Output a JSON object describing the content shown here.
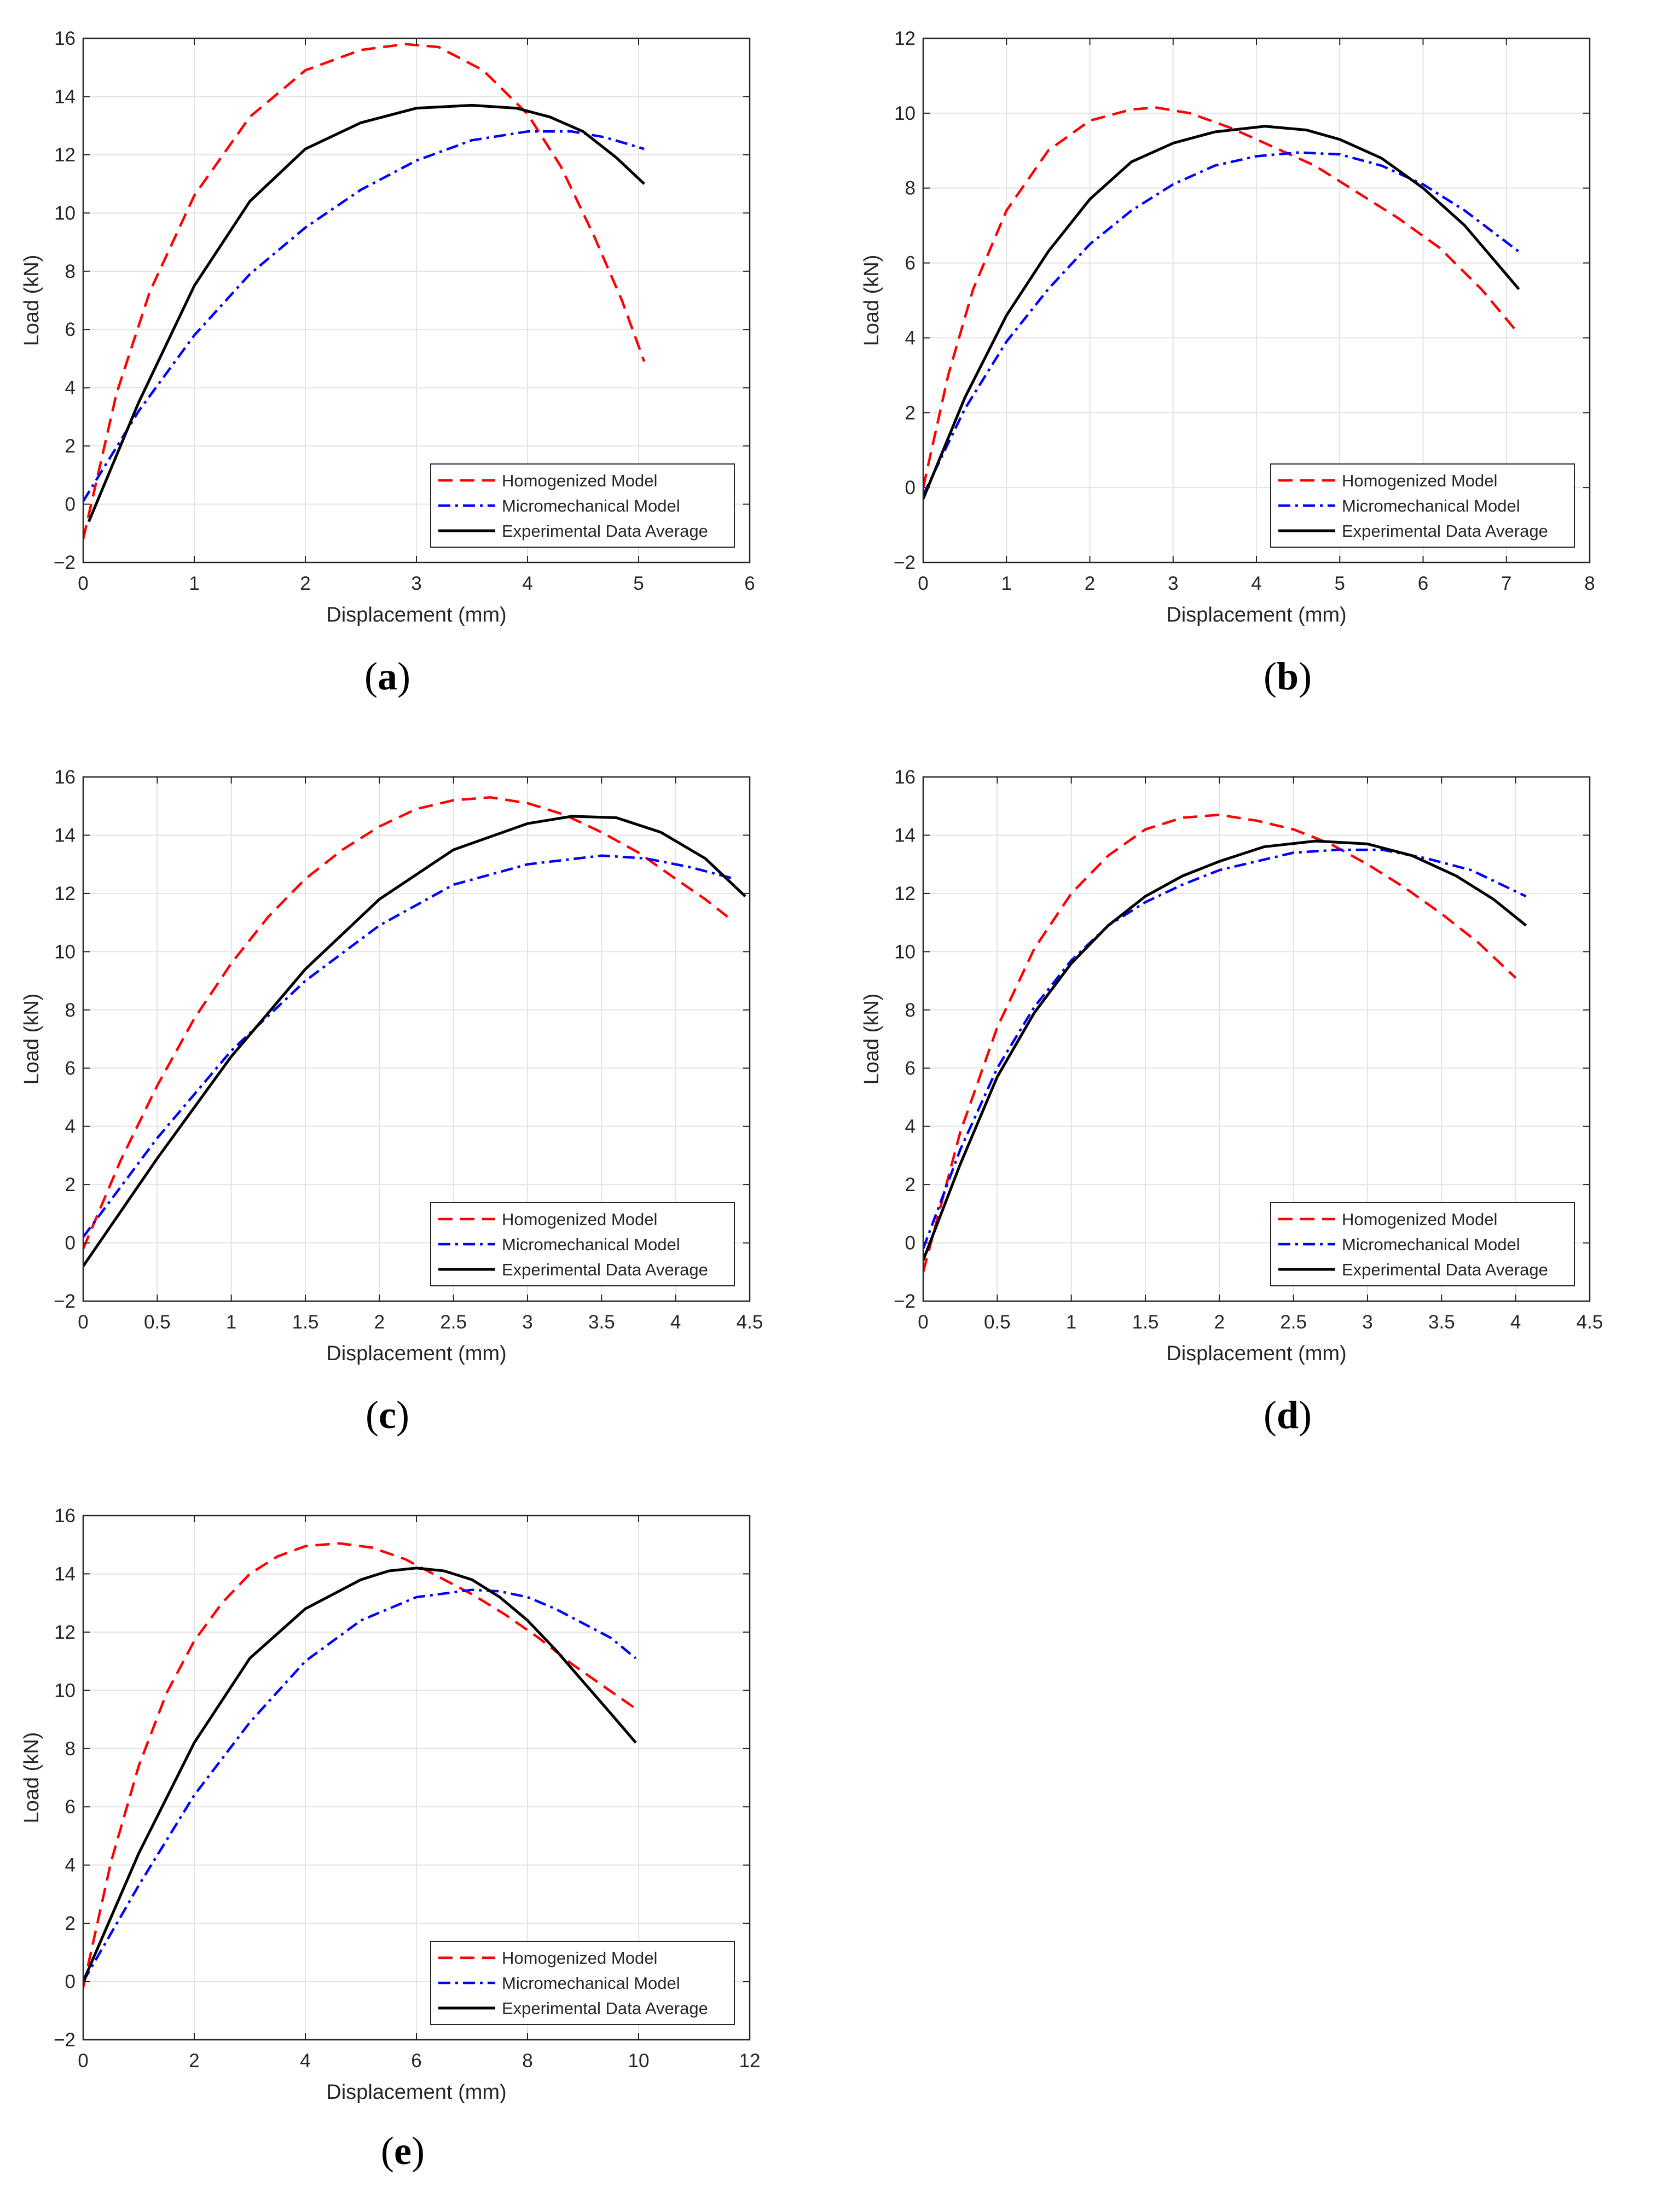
{
  "chart_data": [
    {
      "type": "line",
      "caption": "a",
      "xlabel": "Displacement (mm)",
      "ylabel": "Load (kN)",
      "xlim": [
        0,
        6
      ],
      "ylim": [
        -2,
        16
      ],
      "xticks": [
        0,
        1,
        2,
        3,
        4,
        5,
        6
      ],
      "yticks": [
        -2,
        0,
        2,
        4,
        6,
        8,
        10,
        12,
        14,
        16
      ],
      "xtick_labels": [
        "0",
        "1",
        "2",
        "3",
        "4",
        "5",
        "6"
      ],
      "ytick_labels": [
        "−2",
        "0",
        "2",
        "4",
        "6",
        "8",
        "10",
        "12",
        "14",
        "16"
      ],
      "grid": true,
      "legend_location": "bottom-right",
      "series": [
        {
          "name": "Homogenized Model",
          "style": "dashed",
          "color": "#ff0000",
          "x": [
            0,
            0.3,
            0.6,
            1.0,
            1.5,
            2.0,
            2.5,
            2.9,
            3.2,
            3.6,
            4.0,
            4.3,
            4.6,
            4.85,
            5.05
          ],
          "y": [
            -1.2,
            3.8,
            7.3,
            10.6,
            13.3,
            14.9,
            15.6,
            15.8,
            15.7,
            14.9,
            13.4,
            11.6,
            9.2,
            7.0,
            4.9
          ]
        },
        {
          "name": "Micromechanical Model",
          "style": "dashdot",
          "color": "#0000ff",
          "x": [
            0,
            0.5,
            1.0,
            1.5,
            2.0,
            2.5,
            3.0,
            3.5,
            4.0,
            4.4,
            4.7,
            5.05
          ],
          "y": [
            0.1,
            3.2,
            5.8,
            7.9,
            9.5,
            10.8,
            11.8,
            12.5,
            12.8,
            12.8,
            12.6,
            12.2
          ]
        },
        {
          "name": "Experimental Data Average",
          "style": "solid",
          "color": "#000000",
          "x": [
            0.05,
            0.5,
            1.0,
            1.5,
            2.0,
            2.5,
            3.0,
            3.5,
            3.9,
            4.2,
            4.5,
            4.8,
            5.05
          ],
          "y": [
            -0.6,
            3.5,
            7.5,
            10.4,
            12.2,
            13.1,
            13.6,
            13.7,
            13.6,
            13.3,
            12.8,
            11.9,
            11.0
          ]
        }
      ]
    },
    {
      "type": "line",
      "caption": "b",
      "xlabel": "Displacement (mm)",
      "ylabel": "Load (kN)",
      "xlim": [
        0,
        8
      ],
      "ylim": [
        -2,
        12
      ],
      "xticks": [
        0,
        1,
        2,
        3,
        4,
        5,
        6,
        7,
        8
      ],
      "yticks": [
        -2,
        0,
        2,
        4,
        6,
        8,
        10,
        12
      ],
      "xtick_labels": [
        "0",
        "1",
        "2",
        "3",
        "4",
        "5",
        "6",
        "7",
        "8"
      ],
      "ytick_labels": [
        "−2",
        "0",
        "2",
        "4",
        "6",
        "8",
        "10",
        "12"
      ],
      "grid": true,
      "legend_location": "bottom-right",
      "series": [
        {
          "name": "Homogenized Model",
          "style": "dashed",
          "color": "#ff0000",
          "x": [
            0,
            0.3,
            0.6,
            1.0,
            1.5,
            2.0,
            2.5,
            2.8,
            3.2,
            3.7,
            4.2,
            4.7,
            5.2,
            5.7,
            6.2,
            6.7,
            7.15
          ],
          "y": [
            0,
            3.0,
            5.3,
            7.4,
            9.0,
            9.8,
            10.1,
            10.15,
            10.0,
            9.6,
            9.1,
            8.6,
            7.9,
            7.2,
            6.4,
            5.3,
            4.1
          ]
        },
        {
          "name": "Micromechanical Model",
          "style": "dashdot",
          "color": "#0000ff",
          "x": [
            0,
            0.5,
            1.0,
            1.5,
            2.0,
            2.5,
            3.0,
            3.5,
            4.0,
            4.5,
            5.0,
            5.5,
            6.0,
            6.5,
            7.15
          ],
          "y": [
            -0.2,
            2.1,
            3.9,
            5.3,
            6.5,
            7.4,
            8.1,
            8.6,
            8.85,
            8.95,
            8.9,
            8.6,
            8.1,
            7.4,
            6.3
          ]
        },
        {
          "name": "Experimental Data Average",
          "style": "solid",
          "color": "#000000",
          "x": [
            0,
            0.5,
            1.0,
            1.5,
            2.0,
            2.5,
            3.0,
            3.5,
            4.1,
            4.6,
            5.0,
            5.5,
            6.0,
            6.5,
            7.15
          ],
          "y": [
            -0.3,
            2.4,
            4.6,
            6.3,
            7.7,
            8.7,
            9.2,
            9.5,
            9.65,
            9.55,
            9.3,
            8.8,
            8.0,
            7.0,
            5.3
          ]
        }
      ]
    },
    {
      "type": "line",
      "caption": "c",
      "xlabel": "Displacement (mm)",
      "ylabel": "Load (kN)",
      "xlim": [
        0,
        4.5
      ],
      "ylim": [
        -2,
        16
      ],
      "xticks": [
        0,
        0.5,
        1,
        1.5,
        2,
        2.5,
        3,
        3.5,
        4,
        4.5
      ],
      "yticks": [
        -2,
        0,
        2,
        4,
        6,
        8,
        10,
        12,
        14,
        16
      ],
      "xtick_labels": [
        "0",
        "0.5",
        "1",
        "1.5",
        "2",
        "2.5",
        "3",
        "3.5",
        "4",
        "4.5"
      ],
      "ytick_labels": [
        "−2",
        "0",
        "2",
        "4",
        "6",
        "8",
        "10",
        "12",
        "14",
        "16"
      ],
      "grid": true,
      "legend_location": "bottom-right",
      "series": [
        {
          "name": "Homogenized Model",
          "style": "dashed",
          "color": "#ff0000",
          "x": [
            0,
            0.25,
            0.5,
            0.75,
            1.0,
            1.25,
            1.5,
            1.75,
            2.0,
            2.25,
            2.5,
            2.75,
            3.0,
            3.25,
            3.5,
            3.75,
            4.0,
            4.2,
            4.35
          ],
          "y": [
            -0.2,
            2.8,
            5.4,
            7.7,
            9.6,
            11.2,
            12.5,
            13.5,
            14.3,
            14.9,
            15.2,
            15.3,
            15.1,
            14.7,
            14.1,
            13.4,
            12.5,
            11.8,
            11.2
          ]
        },
        {
          "name": "Micromechanical Model",
          "style": "dashdot",
          "color": "#0000ff",
          "x": [
            0,
            0.5,
            1.0,
            1.5,
            2.0,
            2.5,
            3.0,
            3.5,
            3.8,
            4.1,
            4.4
          ],
          "y": [
            0.2,
            3.6,
            6.6,
            9.0,
            10.9,
            12.3,
            13.0,
            13.3,
            13.2,
            12.9,
            12.5
          ]
        },
        {
          "name": "Experimental Data Average",
          "style": "solid",
          "color": "#000000",
          "x": [
            0,
            0.5,
            1.0,
            1.5,
            2.0,
            2.5,
            3.0,
            3.3,
            3.6,
            3.9,
            4.2,
            4.47
          ],
          "y": [
            -0.8,
            2.9,
            6.4,
            9.4,
            11.8,
            13.5,
            14.4,
            14.65,
            14.6,
            14.1,
            13.2,
            11.9
          ]
        }
      ]
    },
    {
      "type": "line",
      "caption": "d",
      "xlabel": "Displacement (mm)",
      "ylabel": "Load (kN)",
      "xlim": [
        0,
        4.5
      ],
      "ylim": [
        -2,
        16
      ],
      "xticks": [
        0,
        0.5,
        1,
        1.5,
        2,
        2.5,
        3,
        3.5,
        4,
        4.5
      ],
      "yticks": [
        -2,
        0,
        2,
        4,
        6,
        8,
        10,
        12,
        14,
        16
      ],
      "xtick_labels": [
        "0",
        "0.5",
        "1",
        "1.5",
        "2",
        "2.5",
        "3",
        "3.5",
        "4",
        "4.5"
      ],
      "ytick_labels": [
        "−2",
        "0",
        "2",
        "4",
        "6",
        "8",
        "10",
        "12",
        "14",
        "16"
      ],
      "grid": true,
      "legend_location": "bottom-right",
      "series": [
        {
          "name": "Homogenized Model",
          "style": "dashed",
          "color": "#ff0000",
          "x": [
            0,
            0.25,
            0.5,
            0.75,
            1.0,
            1.25,
            1.5,
            1.75,
            2.0,
            2.25,
            2.5,
            2.75,
            3.0,
            3.25,
            3.5,
            3.75,
            4.0
          ],
          "y": [
            -1.0,
            3.8,
            7.4,
            10.1,
            12.0,
            13.3,
            14.2,
            14.6,
            14.7,
            14.5,
            14.2,
            13.7,
            13.0,
            12.2,
            11.3,
            10.3,
            9.1
          ]
        },
        {
          "name": "Micromechanical Model",
          "style": "dashdot",
          "color": "#0000ff",
          "x": [
            0,
            0.25,
            0.5,
            0.75,
            1.0,
            1.25,
            1.5,
            1.75,
            2.0,
            2.5,
            2.8,
            3.1,
            3.4,
            3.7,
            4.07
          ],
          "y": [
            -0.2,
            3.2,
            6.0,
            8.1,
            9.7,
            10.9,
            11.7,
            12.3,
            12.8,
            13.4,
            13.5,
            13.5,
            13.2,
            12.8,
            11.9
          ]
        },
        {
          "name": "Experimental Data Average",
          "style": "solid",
          "color": "#000000",
          "x": [
            0,
            0.25,
            0.5,
            0.75,
            1.0,
            1.25,
            1.5,
            1.75,
            2.0,
            2.3,
            2.65,
            3.0,
            3.3,
            3.6,
            3.85,
            4.07
          ],
          "y": [
            -0.6,
            2.7,
            5.7,
            7.9,
            9.6,
            10.9,
            11.9,
            12.6,
            13.1,
            13.6,
            13.8,
            13.7,
            13.3,
            12.6,
            11.8,
            10.9
          ]
        }
      ]
    },
    {
      "type": "line",
      "caption": "e",
      "xlabel": "Displacement (mm)",
      "ylabel": "Load (kN)",
      "xlim": [
        0,
        12
      ],
      "ylim": [
        -2,
        16
      ],
      "xticks": [
        0,
        2,
        4,
        6,
        8,
        10,
        12
      ],
      "yticks": [
        -2,
        0,
        2,
        4,
        6,
        8,
        10,
        12,
        14,
        16
      ],
      "xtick_labels": [
        "0",
        "2",
        "4",
        "6",
        "8",
        "10",
        "12"
      ],
      "ytick_labels": [
        "−2",
        "0",
        "2",
        "4",
        "6",
        "8",
        "10",
        "12",
        "14",
        "16"
      ],
      "grid": true,
      "legend_location": "bottom-right",
      "series": [
        {
          "name": "Homogenized Model",
          "style": "dashed",
          "color": "#ff0000",
          "x": [
            0,
            0.5,
            1.0,
            1.5,
            2.0,
            2.5,
            3.0,
            3.5,
            4.0,
            4.6,
            5.2,
            5.8,
            6.4,
            7.0,
            7.6,
            8.2,
            8.8,
            9.4,
            10.0
          ],
          "y": [
            -0.2,
            4.1,
            7.4,
            9.9,
            11.7,
            13.0,
            14.0,
            14.6,
            14.95,
            15.05,
            14.9,
            14.5,
            13.9,
            13.3,
            12.6,
            11.8,
            10.9,
            10.1,
            9.3
          ]
        },
        {
          "name": "Micromechanical Model",
          "style": "dashdot",
          "color": "#0000ff",
          "x": [
            0,
            1.0,
            2.0,
            3.0,
            4.0,
            5.0,
            6.0,
            7.0,
            7.5,
            8.0,
            8.5,
            9.0,
            9.5,
            9.95
          ],
          "y": [
            0,
            3.3,
            6.4,
            8.9,
            11.0,
            12.4,
            13.2,
            13.45,
            13.4,
            13.2,
            12.8,
            12.3,
            11.8,
            11.1
          ]
        },
        {
          "name": "Experimental Data Average",
          "style": "solid",
          "color": "#000000",
          "x": [
            0,
            1.0,
            2.0,
            3.0,
            4.0,
            5.0,
            5.5,
            6.0,
            6.5,
            7.0,
            7.5,
            8.0,
            8.5,
            9.0,
            9.5,
            9.95
          ],
          "y": [
            0,
            4.4,
            8.2,
            11.1,
            12.8,
            13.8,
            14.1,
            14.2,
            14.1,
            13.8,
            13.2,
            12.4,
            11.4,
            10.3,
            9.2,
            8.2
          ]
        }
      ]
    }
  ]
}
